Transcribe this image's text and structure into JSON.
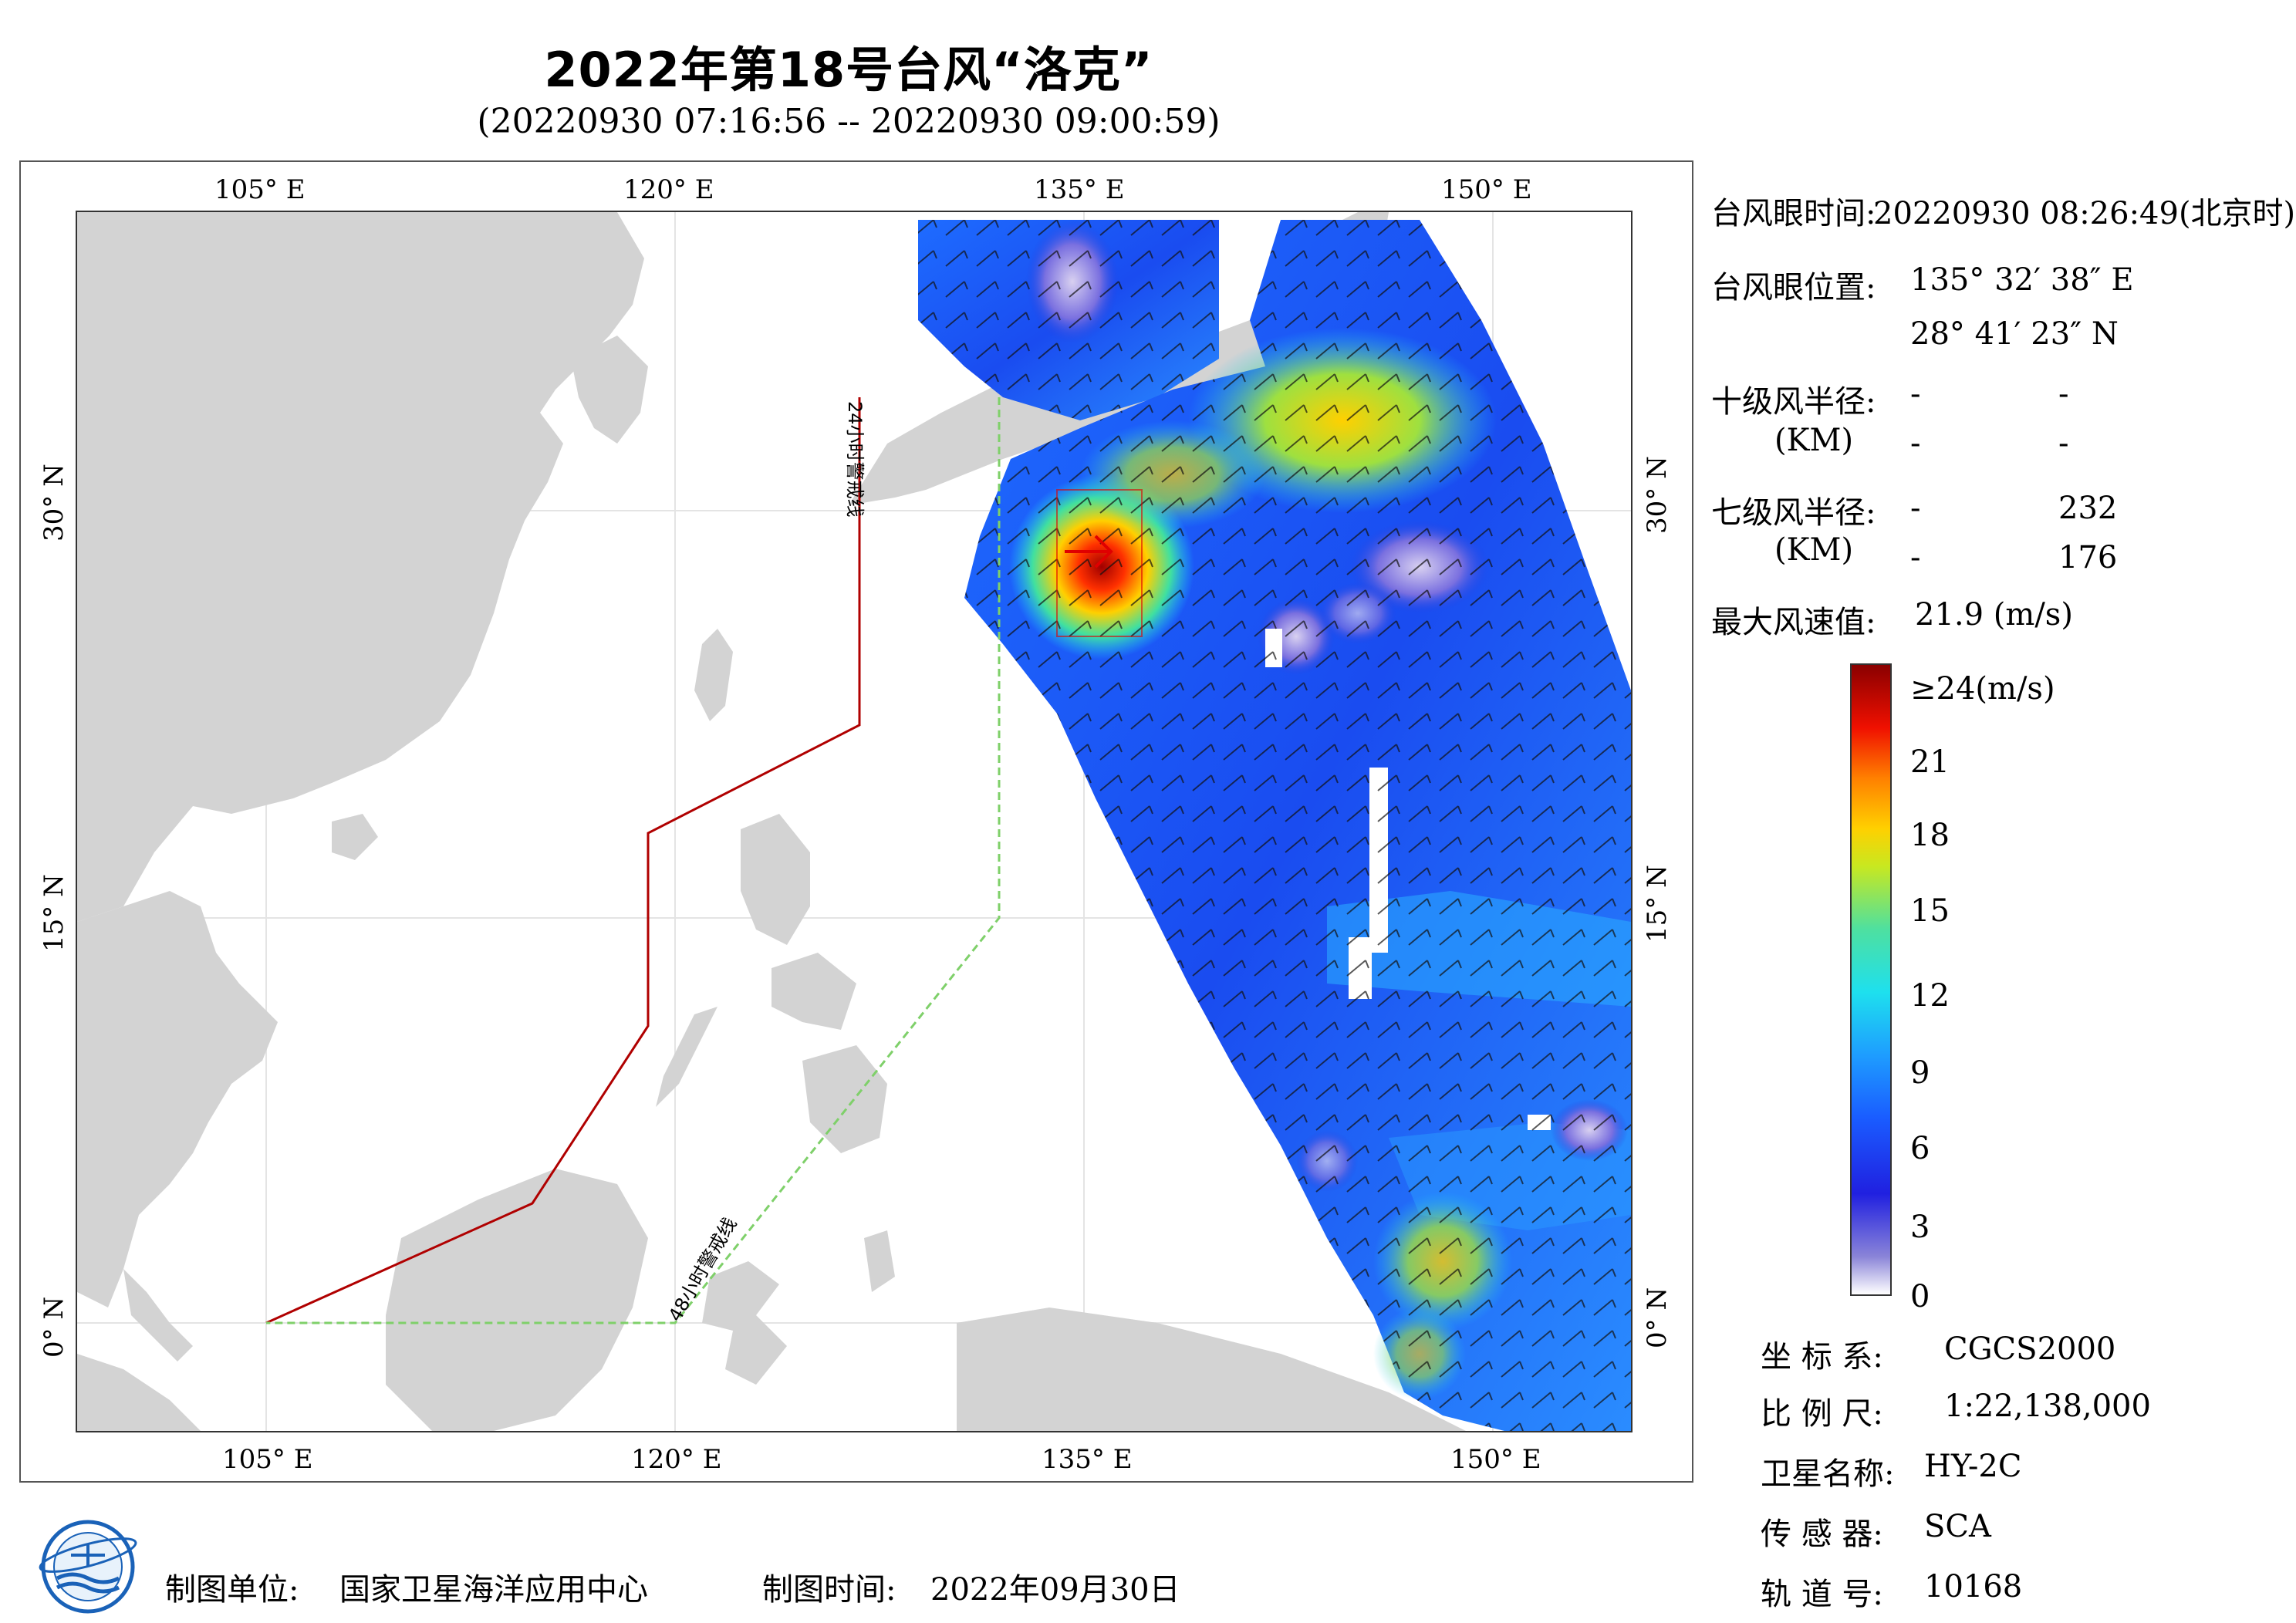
{
  "header": {
    "title": "2022年第18号台风“洛克”",
    "subtitle": "(20220930 07:16:56 -- 20220930 09:00:59)"
  },
  "map": {
    "top_ticks": [
      "105° E",
      "120° E",
      "135° E",
      "150° E"
    ],
    "bottom_ticks": [
      "105° E",
      "120° E",
      "135° E",
      "150° E"
    ],
    "left_ticks": [
      "30° N",
      "15° N",
      "0° N"
    ],
    "right_ticks": [
      "30° N",
      "15° N",
      "0° N"
    ],
    "line_24h_label": "24小时警戒线",
    "line_48h_label": "48小时警戒线",
    "colors": {
      "land": "#d3d3d3",
      "line_24h": "#b00000",
      "line_48h": "#7fd06a"
    }
  },
  "info": {
    "eye_time_label": "台风眼时间:",
    "eye_time_value": "20220930 08:26:49(北京时)",
    "eye_pos_label": "台风眼位置:",
    "eye_lon": "135° 32′ 38″ E",
    "eye_lat": "28° 41′ 23″ N",
    "r10_label": "十级风半径:",
    "r10_km": "(KM)",
    "r10_v1": "-",
    "r10_v2": "-",
    "r10_v3": "-",
    "r10_v4": "-",
    "r7_label": "七级风半径:",
    "r7_km": "(KM)",
    "r7_v1": "-",
    "r7_v2": "232",
    "r7_v3": "-",
    "r7_v4": "176",
    "maxwind_label": "最大风速值:",
    "maxwind_value": "21.9  (m/s)"
  },
  "colorbar": {
    "labels": [
      "≥24(m/s)",
      "21",
      "18",
      "15",
      "12",
      "9",
      "6",
      "3",
      "0"
    ]
  },
  "meta": {
    "coord_label": "坐 标 系:",
    "coord_value": "CGCS2000",
    "scale_label": "比 例 尺:",
    "scale_value": "1:22,138,000",
    "sat_label": "卫星名称:",
    "sat_value": "HY-2C",
    "sensor_label": "传 感 器:",
    "sensor_value": "SCA",
    "orbit_label": "轨 道 号:",
    "orbit_value": "10168"
  },
  "footer": {
    "unit_label": "制图单位:",
    "unit_value": "国家卫星海洋应用中心",
    "time_label": "制图时间:",
    "time_value": "2022年09月30日"
  }
}
